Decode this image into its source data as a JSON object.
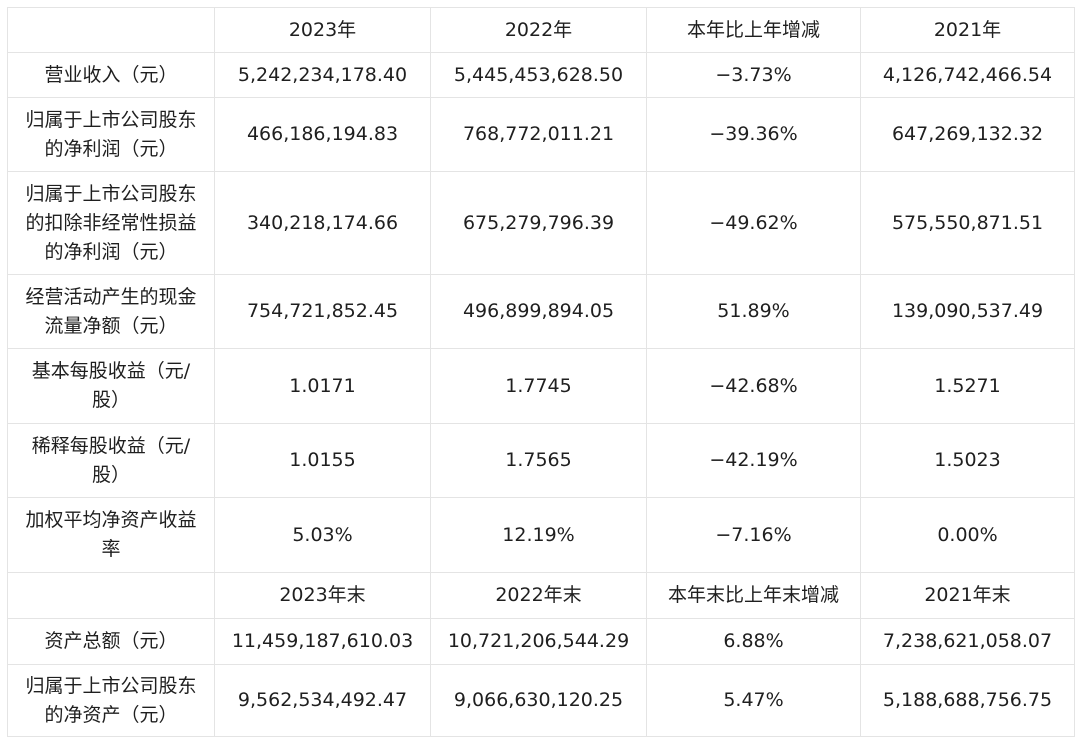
{
  "table": {
    "header": [
      "",
      "2023年",
      "2022年",
      "本年比上年增减",
      "2021年"
    ],
    "rows": [
      {
        "label_lines": [
          "营业收入（元）"
        ],
        "values": [
          "5,242,234,178.40",
          "5,445,453,628.50",
          "−3.73%",
          "4,126,742,466.54"
        ]
      },
      {
        "label_lines": [
          "归属于上市公司股东",
          "的净利润（元）"
        ],
        "values": [
          "466,186,194.83",
          "768,772,011.21",
          "−39.36%",
          "647,269,132.32"
        ]
      },
      {
        "label_lines": [
          "归属于上市公司股东",
          "的扣除非经常性损益",
          "的净利润（元）"
        ],
        "values": [
          "340,218,174.66",
          "675,279,796.39",
          "−49.62%",
          "575,550,871.51"
        ]
      },
      {
        "label_lines": [
          "经营活动产生的现金",
          "流量净额（元）"
        ],
        "values": [
          "754,721,852.45",
          "496,899,894.05",
          "51.89%",
          "139,090,537.49"
        ]
      },
      {
        "label_lines": [
          "基本每股收益（元/",
          "股）"
        ],
        "values": [
          "1.0171",
          "1.7745",
          "−42.68%",
          "1.5271"
        ]
      },
      {
        "label_lines": [
          "稀释每股收益（元/",
          "股）"
        ],
        "values": [
          "1.0155",
          "1.7565",
          "−42.19%",
          "1.5023"
        ]
      },
      {
        "label_lines": [
          "加权平均净资产收益",
          "率"
        ],
        "values": [
          "5.03%",
          "12.19%",
          "−7.16%",
          "0.00%"
        ]
      }
    ],
    "subheader": [
      "",
      "2023年末",
      "2022年末",
      "本年末比上年末增减",
      "2021年末"
    ],
    "rows2": [
      {
        "label_lines": [
          "资产总额（元）"
        ],
        "values": [
          "11,459,187,610.03",
          "10,721,206,544.29",
          "6.88%",
          "7,238,621,058.07"
        ]
      },
      {
        "label_lines": [
          "归属于上市公司股东",
          "的净资产（元）"
        ],
        "values": [
          "9,562,534,492.47",
          "9,066,630,120.25",
          "5.47%",
          "5,188,688,756.75"
        ]
      }
    ]
  }
}
